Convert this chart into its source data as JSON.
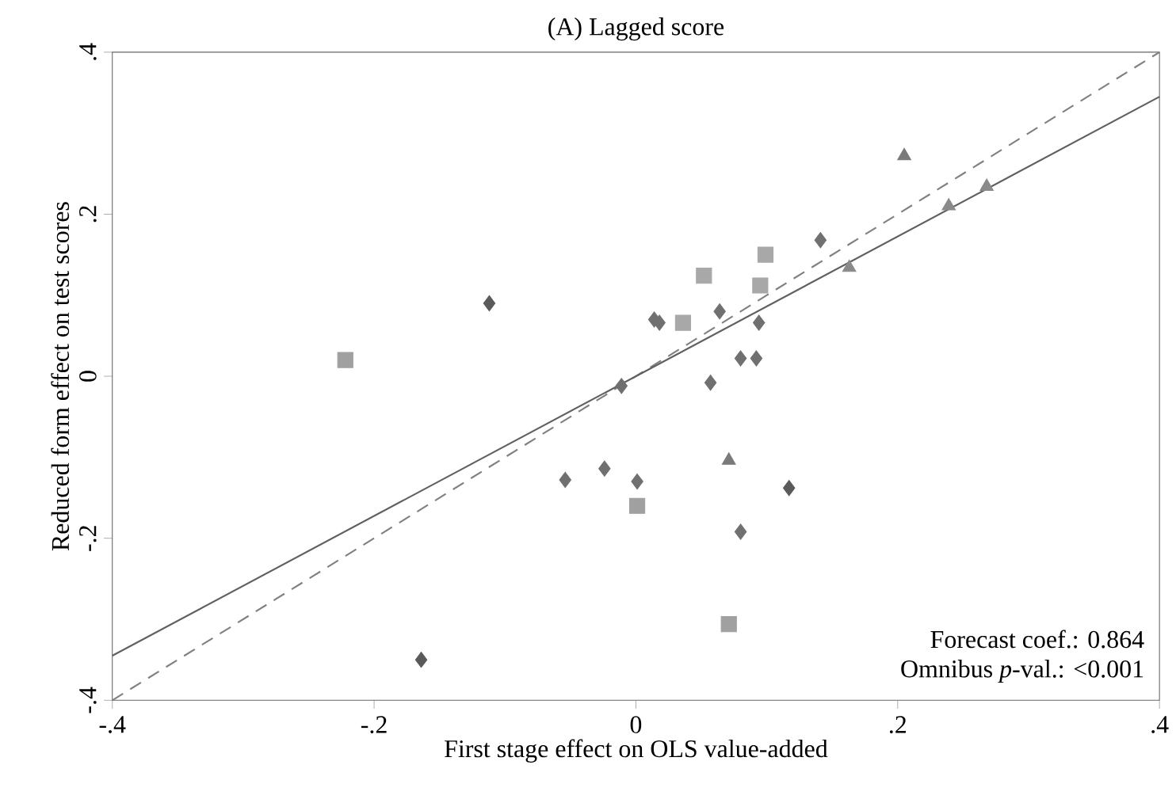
{
  "chart_data": {
    "type": "scatter",
    "title": "(A) Lagged score",
    "xlabel": "First stage effect on OLS value-added",
    "ylabel": "Reduced form effect on test scores",
    "xlim": [
      -0.4,
      0.4
    ],
    "ylim": [
      -0.4,
      0.4
    ],
    "xticks": [
      {
        "value": -0.4,
        "label": "-.4"
      },
      {
        "value": -0.2,
        "label": "-.2"
      },
      {
        "value": 0,
        "label": "0"
      },
      {
        "value": 0.2,
        "label": ".2"
      },
      {
        "value": 0.4,
        "label": ".4"
      }
    ],
    "yticks": [
      {
        "value": -0.4,
        "label": "-.4"
      },
      {
        "value": -0.2,
        "label": "-.2"
      },
      {
        "value": 0,
        "label": "0"
      },
      {
        "value": 0.2,
        "label": ".2"
      },
      {
        "value": 0.4,
        "label": ".4"
      }
    ],
    "grid": false,
    "annotations": [
      "Forecast coef.: 0.864",
      "Omnibus *p*-val.: <0.001"
    ],
    "series": [
      {
        "type": "line",
        "line_style": "dashed",
        "color": "#808080",
        "x": [
          -0.4,
          0.4
        ],
        "values": [
          -0.4,
          0.4
        ]
      },
      {
        "type": "line",
        "line_style": "solid",
        "color": "#606060",
        "x": [
          -0.4,
          0.4
        ],
        "values": [
          -0.345,
          0.345
        ]
      },
      {
        "marker": "diamond",
        "color": "#5a5a5a",
        "x": [
          -0.112,
          -0.164,
          0.117
        ],
        "values": [
          0.09,
          -0.35,
          -0.138
        ]
      },
      {
        "marker": "square",
        "color": "#a0a0a0",
        "x": [
          -0.222,
          0.001,
          0.071
        ],
        "values": [
          0.02,
          -0.16,
          -0.306
        ]
      },
      {
        "marker": "triangle",
        "color": "#7a7a7a",
        "x": [
          0.205,
          0.071
        ],
        "values": [
          0.272,
          -0.104
        ]
      },
      {
        "marker": "triangle",
        "color": "#8a8a8a",
        "x": [
          0.163,
          0.239,
          0.268
        ],
        "values": [
          0.134,
          0.21,
          0.234
        ]
      },
      {
        "marker": "square",
        "color": "#a8a8a8",
        "x": [
          0.052,
          0.099,
          0.095,
          0.036
        ],
        "values": [
          0.124,
          0.15,
          0.112,
          0.066
        ]
      },
      {
        "marker": "diamond",
        "color": "#707070",
        "x": [
          -0.054,
          -0.024,
          -0.011,
          0.001,
          0.014,
          0.018,
          0.064,
          0.057,
          0.08,
          0.092,
          0.094,
          0.141,
          0.08
        ],
        "values": [
          -0.128,
          -0.114,
          -0.012,
          -0.13,
          0.07,
          0.066,
          0.08,
          -0.008,
          0.022,
          0.022,
          0.066,
          0.168,
          -0.192
        ]
      }
    ]
  }
}
